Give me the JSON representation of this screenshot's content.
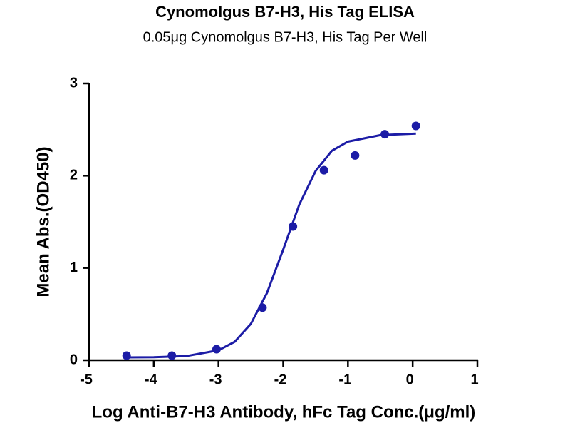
{
  "chart_data": {
    "type": "scatter",
    "title": "Cynomolgus B7-H3, His Tag ELISA",
    "subtitle": "0.05μg Cynomolgus B7-H3, His Tag Per Well",
    "xlabel": "Log Anti-B7-H3 Antibody, hFc Tag Conc.(μg/ml)",
    "ylabel": "Mean Abs.(OD450)",
    "xlim": [
      -5,
      1
    ],
    "ylim": [
      0,
      3
    ],
    "xticks": [
      -5,
      -4,
      -3,
      -2,
      -1,
      0,
      1
    ],
    "yticks": [
      0,
      1,
      2,
      3
    ],
    "series": [
      {
        "type": "scatter",
        "color": "#1c1ca6",
        "x": [
          -4.42,
          -3.72,
          -3.03,
          -2.32,
          -1.85,
          -1.37,
          -0.89,
          -0.43,
          0.05
        ],
        "values": [
          0.05,
          0.05,
          0.12,
          0.57,
          1.45,
          2.06,
          2.22,
          2.45,
          2.54
        ]
      },
      {
        "type": "line",
        "color": "#1c1ca6",
        "x": [
          -4.42,
          -4,
          -3.5,
          -3,
          -2.75,
          -2.5,
          -2.25,
          -2,
          -1.75,
          -1.5,
          -1.25,
          -1,
          -0.5,
          0.05
        ],
        "values": [
          0.031,
          0.033,
          0.045,
          0.108,
          0.2,
          0.394,
          0.73,
          1.2,
          1.69,
          2.05,
          2.27,
          2.37,
          2.44,
          2.457
        ]
      }
    ]
  }
}
